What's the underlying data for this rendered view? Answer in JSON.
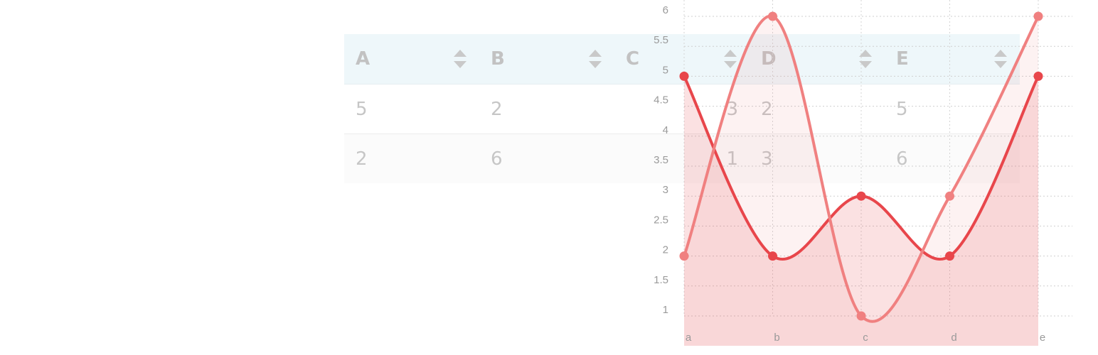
{
  "table": {
    "columns": [
      "A",
      "B",
      "C",
      "D",
      "E"
    ],
    "rows": [
      [
        "5",
        "2",
        "3",
        "2",
        "5"
      ],
      [
        "2",
        "6",
        "1",
        "3",
        "6"
      ]
    ]
  },
  "chart_data": {
    "type": "area",
    "categories": [
      "a",
      "b",
      "c",
      "d",
      "e"
    ],
    "series": [
      {
        "values": [
          5,
          2,
          3,
          2,
          5
        ],
        "color": "#e8464b",
        "filled": true
      },
      {
        "values": [
          2,
          6,
          1,
          3,
          6
        ],
        "color": "#f08080",
        "filled": true
      }
    ],
    "y_ticks": [
      "1",
      "1.5",
      "2",
      "2.5",
      "3",
      "3.5",
      "4",
      "4.5",
      "5",
      "5.5",
      "6"
    ],
    "ylim": [
      1,
      6
    ],
    "grid": true,
    "grid_style": "dotted",
    "line_shape": "spline",
    "title": "",
    "xlabel": "",
    "ylabel": ""
  },
  "colors": {
    "header_background": "#eef7fa",
    "text_muted": "#c4c4c4",
    "fill": "#fbd7d8"
  },
  "icons": {
    "sort": "sort-updown-icon"
  }
}
